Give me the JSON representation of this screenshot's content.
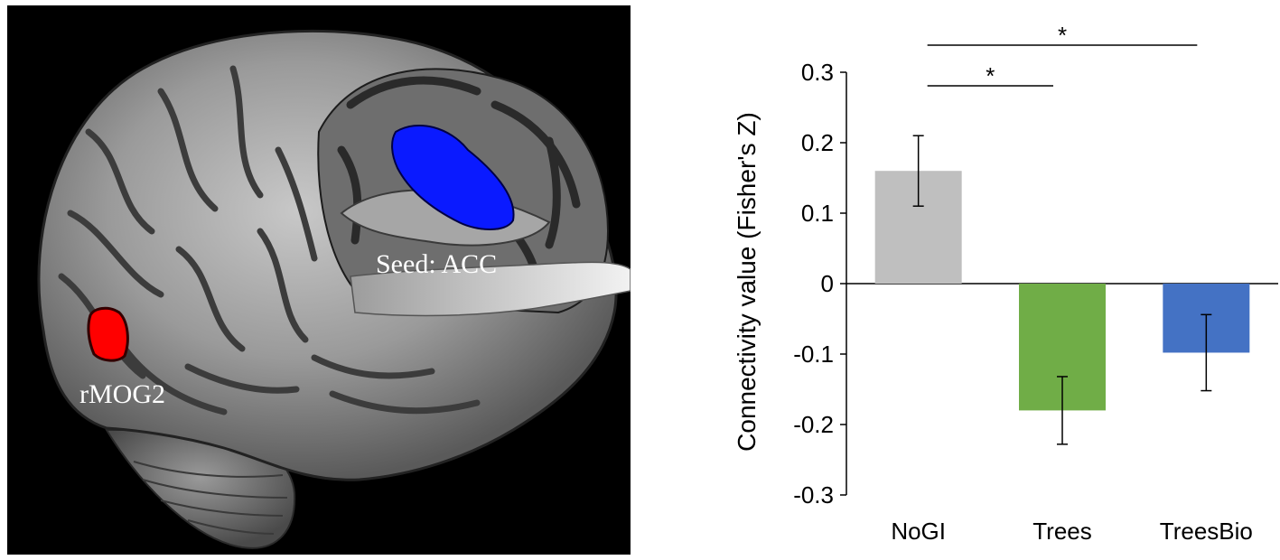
{
  "brain_image": {
    "seed_label": "Seed: ACC",
    "cluster_label": "rMOG2",
    "colors": {
      "background": "#000000",
      "seed": "#0a1aff",
      "cluster": "#ff0000",
      "cortex": "#8e8e8e"
    }
  },
  "chart_data": {
    "type": "bar",
    "categories": [
      "NoGI",
      "Trees",
      "TreesBio"
    ],
    "values": [
      0.16,
      -0.18,
      -0.098
    ],
    "error": [
      0.05,
      0.048,
      0.054
    ],
    "colors": [
      "#bfbfbf",
      "#70ad47",
      "#4472c4"
    ],
    "ylabel": "Connectivity value (Fisher's Z)",
    "xlabel": "",
    "ylim": [
      -0.3,
      0.3
    ],
    "yticks": [
      0.3,
      0.2,
      0.1,
      0,
      -0.1,
      -0.2,
      -0.3
    ],
    "ytick_labels": [
      "0.3",
      "0.2",
      "0.1",
      "0",
      "-0.1",
      "-0.2",
      "-0.3"
    ],
    "grid": false,
    "significance": [
      {
        "from": "NoGI",
        "to": "TreesBio",
        "label": "*"
      },
      {
        "from": "NoGI",
        "to": "Trees",
        "label": "*"
      }
    ]
  }
}
